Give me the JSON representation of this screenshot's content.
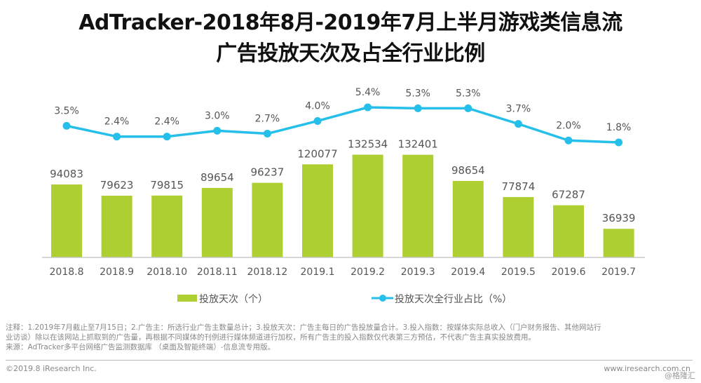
{
  "title": {
    "line1": "AdTracker-2018年8月-2019年7月上半月游戏类信息流",
    "line2": "广告投放天次及占全行业比例"
  },
  "chart_data": {
    "type": "bar",
    "title": "AdTracker-2018年8月-2019年7月上半月游戏类信息流广告投放天次及占全行业比例",
    "xlabel": "",
    "ylabel": "",
    "categories": [
      "2018.8",
      "2018.9",
      "2018.10",
      "2018.11",
      "2018.12",
      "2019.1",
      "2019.2",
      "2019.3",
      "2019.4",
      "2019.5",
      "2019.6",
      "2019.7"
    ],
    "series": [
      {
        "name": "投放天次（个）",
        "type": "bar",
        "color": "#aecf31",
        "values": [
          94083,
          79623,
          79815,
          89654,
          96237,
          120077,
          132534,
          132401,
          98654,
          77874,
          67287,
          36939
        ],
        "labels": [
          "94083",
          "79623",
          "79815",
          "89654",
          "96237",
          "120077",
          "132534",
          "132401",
          "98654",
          "77874",
          "67287",
          "36939"
        ]
      },
      {
        "name": "投放天次全行业占比（%）",
        "type": "line",
        "color": "#25bfea",
        "values": [
          3.5,
          2.4,
          2.4,
          3.0,
          2.7,
          4.0,
          5.4,
          5.3,
          5.3,
          3.7,
          2.0,
          1.8
        ],
        "labels": [
          "3.5%",
          "2.4%",
          "2.4%",
          "3.0%",
          "2.7%",
          "4.0%",
          "5.4%",
          "5.3%",
          "5.3%",
          "3.7%",
          "2.0%",
          "1.8%"
        ]
      }
    ],
    "grid": false,
    "legend": "bottom"
  },
  "legend": {
    "bar_label": "投放天次（个）",
    "line_label": "投放天次全行业占比（%）"
  },
  "notes": {
    "line1": "注释：1.2019年7月截止至7月15日；2.广告主：所选行业广告主数量总计；3.投放天次：广告主每日的广告投放量合计。3.投入指数：按媒体实际总收入（门户财务报告、其他网站行",
    "line2": "业访谈）除以在该网站上抓取到的广告量，再根据不同媒体的刊例进行媒体频道进行加权，所有广告主的投入指数仅代表第三方预估，不代表广告主真实投放费用。",
    "line3": "来源：AdTracker多平台网络广告监测数据库 （桌面及智能终端）-信息流专用版。"
  },
  "footer": {
    "copyright": "©2019.8 iResearch Inc.",
    "site": "www.iresearch.com.cn",
    "watermark": "@格隆汇"
  }
}
